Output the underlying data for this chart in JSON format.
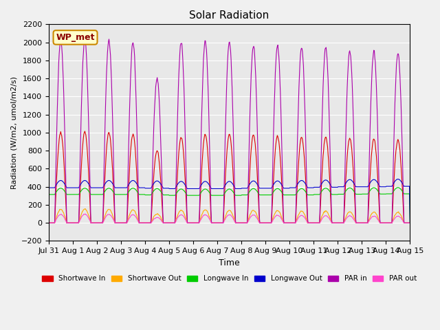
{
  "title": "Solar Radiation",
  "xlabel": "Time",
  "ylabel": "Radiation (W/m2, umol/m2/s)",
  "ylim": [
    -200,
    2200
  ],
  "yticks": [
    -200,
    0,
    200,
    400,
    600,
    800,
    1000,
    1200,
    1400,
    1600,
    1800,
    2000,
    2200
  ],
  "station_label": "WP_met",
  "bg_color": "#e8e8e8",
  "fig_bg_color": "#f0f0f0",
  "series_colors": {
    "shortwave_in": "#dd0000",
    "shortwave_out": "#ffaa00",
    "longwave_in": "#00cc00",
    "longwave_out": "#0000cc",
    "par_in": "#aa00aa",
    "par_out": "#ff44cc"
  },
  "legend_labels": [
    "Shortwave In",
    "Shortwave Out",
    "Longwave In",
    "Longwave Out",
    "PAR in",
    "PAR out"
  ],
  "sw_in_peaks": [
    1000,
    1010,
    1000,
    980,
    800,
    950,
    980,
    980,
    975,
    960,
    950,
    950,
    940,
    930,
    920
  ],
  "sw_out_peaks": [
    150,
    155,
    150,
    145,
    100,
    140,
    145,
    140,
    140,
    135,
    130,
    130,
    125,
    120,
    120
  ],
  "lw_in_base": [
    315,
    315,
    315,
    315,
    310,
    305,
    305,
    305,
    310,
    310,
    310,
    315,
    318,
    320,
    322
  ],
  "lw_in_amp": 70,
  "lw_out_base": [
    390,
    390,
    390,
    390,
    385,
    380,
    380,
    380,
    385,
    385,
    390,
    395,
    400,
    400,
    405
  ],
  "lw_out_amp": 80,
  "par_in_peaks": [
    2020,
    2030,
    2020,
    2000,
    1600,
    2000,
    2010,
    2000,
    1960,
    1960,
    1940,
    1940,
    1900,
    1900,
    1880
  ],
  "par_out_peaks": [
    95,
    98,
    95,
    90,
    60,
    90,
    92,
    90,
    88,
    85,
    82,
    80,
    78,
    75,
    75
  ],
  "day_rise": 0.25,
  "day_set": 0.75,
  "n_days": 15,
  "n_per_day": 48,
  "tick_labels": [
    "Jul 31",
    "Aug 1",
    "Aug 2",
    "Aug 3",
    "Aug 4",
    "Aug 5",
    "Aug 6",
    "Aug 7",
    "Aug 8",
    "Aug 9",
    "Aug 10",
    "Aug 11",
    "Aug 12",
    "Aug 13",
    "Aug 14",
    "Aug 15"
  ]
}
